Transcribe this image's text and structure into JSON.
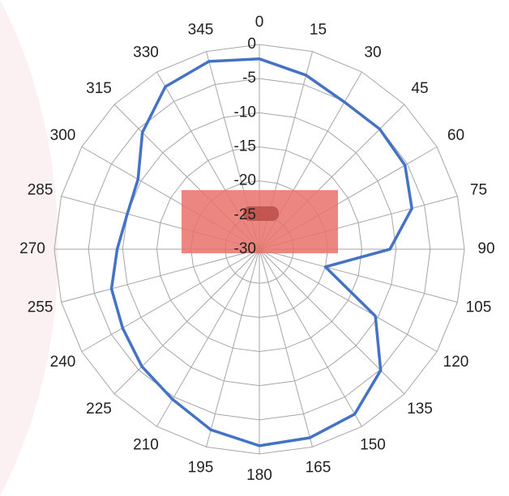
{
  "chart_data": {
    "type": "radar",
    "categories": [
      "0",
      "15",
      "30",
      "45",
      "60",
      "75",
      "90",
      "105",
      "120",
      "135",
      "150",
      "165",
      "180",
      "195",
      "210",
      "225",
      "240",
      "255",
      "270",
      "285",
      "300",
      "315",
      "330",
      "345"
    ],
    "series": [
      {
        "color": "#4472c4",
        "values": [
          -2.1,
          -3.6,
          -5.1,
          -5.1,
          -5.4,
          -6.9,
          -10.9,
          -20,
          -10.4,
          -4.9,
          -2.1,
          -1.4,
          -1.2,
          -2.6,
          -4.6,
          -5.7,
          -6.9,
          -7.6,
          -9.2,
          -10,
          -9.5,
          -5.8,
          -2.5,
          -1.5
        ]
      }
    ],
    "rlim": [
      -30,
      0
    ],
    "rticks": [
      -30,
      -25,
      -20,
      -15,
      -10,
      -5,
      0
    ],
    "grid": true
  }
}
